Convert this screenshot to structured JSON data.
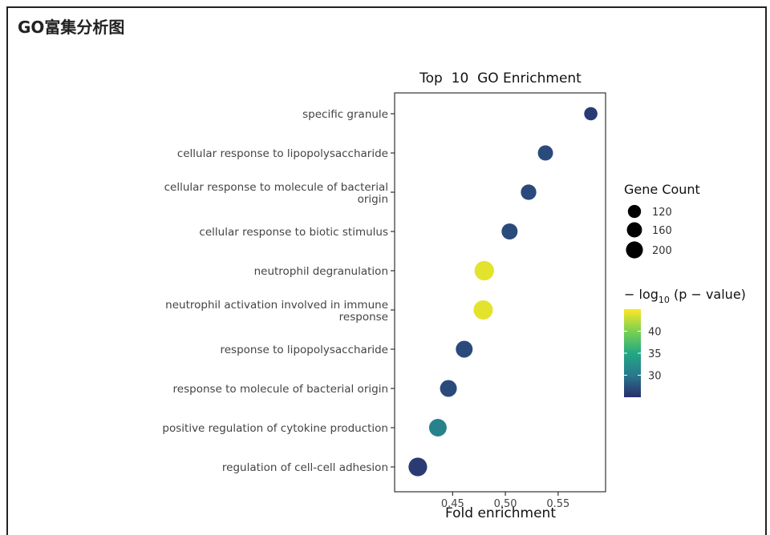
{
  "page": {
    "title": "GO富集分析图"
  },
  "chart_data": {
    "type": "scatter",
    "title": "Top  10  GO Enrichment",
    "xlabel": "Fold enrichment",
    "ylabel": "",
    "xlim": [
      0.395,
      0.595
    ],
    "xticks": [
      0.45,
      0.5,
      0.55
    ],
    "xtick_labels": [
      "0.45",
      "0.50",
      "0.55"
    ],
    "grid": false,
    "categories": [
      "specific granule",
      "cellular response to lipopolysaccharide",
      "cellular response to molecule of bacterial origin",
      "cellular response to biotic stimulus",
      "neutrophil degranulation",
      "neutrophil activation involved in immune response",
      "response to lipopolysaccharide",
      "response to molecule of bacterial origin",
      "positive regulation of cytokine production",
      "regulation of cell-cell adhesion"
    ],
    "category_label_lines": [
      [
        "specific granule"
      ],
      [
        "cellular response to lipopolysaccharide"
      ],
      [
        "cellular response to molecule of bacterial",
        "origin"
      ],
      [
        "cellular response to biotic stimulus"
      ],
      [
        "neutrophil degranulation"
      ],
      [
        "neutrophil activation involved in immune",
        "response"
      ],
      [
        "response to lipopolysaccharide"
      ],
      [
        "response to molecule of bacterial origin"
      ],
      [
        "positive regulation of cytokine production"
      ],
      [
        "regulation of cell-cell adhesion"
      ]
    ],
    "fold_enrichment": [
      0.581,
      0.538,
      0.522,
      0.504,
      0.48,
      0.479,
      0.461,
      0.446,
      0.436,
      0.417
    ],
    "gene_count": [
      100,
      130,
      135,
      145,
      215,
      210,
      160,
      160,
      175,
      195
    ],
    "neg_log10_p": [
      26,
      27,
      27,
      27,
      44,
      44,
      27,
      27,
      31,
      26
    ],
    "size_legend": {
      "title": "Gene Count",
      "values": [
        120,
        160,
        200
      ],
      "labels": [
        "120",
        "160",
        "200"
      ]
    },
    "color_legend": {
      "title": "− log10 (p − value)",
      "range": [
        25,
        45
      ],
      "ticks": [
        30,
        35,
        40
      ],
      "tick_labels": [
        "30",
        "35",
        "40"
      ],
      "colors": [
        "#2a2c6e",
        "#2a788e",
        "#22a884",
        "#7ad151",
        "#fde725"
      ]
    },
    "legend_position": "right"
  }
}
